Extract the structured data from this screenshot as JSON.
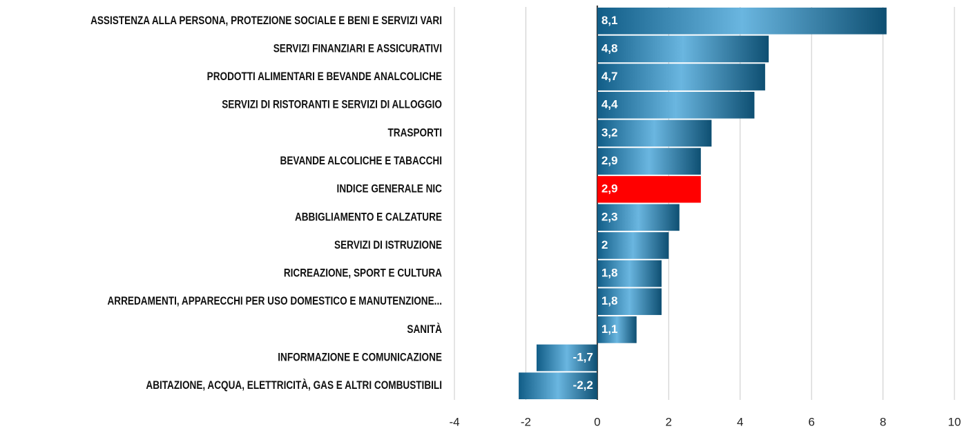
{
  "chart_data": {
    "type": "barh",
    "categories": [
      "ASSISTENZA ALLA PERSONA, PROTEZIONE SOCIALE E BENI E SERVIZI VARI",
      "SERVIZI FINANZIARI E ASSICURATIVI",
      "PRODOTTI ALIMENTARI E BEVANDE ANALCOLICHE",
      "SERVIZI DI RISTORANTI E SERVIZI DI ALLOGGIO",
      "TRASPORTI",
      "BEVANDE ALCOLICHE E TABACCHI",
      "INDICE GENERALE NIC",
      "ABBIGLIAMENTO E CALZATURE",
      "SERVIZI DI ISTRUZIONE",
      "RICREAZIONE, SPORT E CULTURA",
      "ARREDAMENTI, APPARECCHI PER USO DOMESTICO E MANUTENZIONE...",
      "SANITÀ",
      "INFORMAZIONE E COMUNICAZIONE",
      "ABITAZIONE, ACQUA, ELETTRICITÀ, GAS E ALTRI COMBUSTIBILI"
    ],
    "values": [
      8.1,
      4.8,
      4.7,
      4.4,
      3.2,
      2.9,
      2.9,
      2.3,
      2,
      1.8,
      1.8,
      1.1,
      -1.7,
      -2.2
    ],
    "value_labels": [
      "8,1",
      "4,8",
      "4,7",
      "4,4",
      "3,2",
      "2,9",
      "2,9",
      "2,3",
      "2",
      "1,8",
      "1,8",
      "1,1",
      "-1,7",
      "-2,2"
    ],
    "colors": [
      "#1a8fd0",
      "#1a8fd0",
      "#1a8fd0",
      "#1a8fd0",
      "#1a8fd0",
      "#1a8fd0",
      "#ff0000",
      "#1a8fd0",
      "#1a8fd0",
      "#1a8fd0",
      "#1a8fd0",
      "#1a8fd0",
      "#1a8fd0",
      "#1a8fd0"
    ],
    "xlim": [
      -4,
      10
    ],
    "xticks": [
      -4,
      -2,
      0,
      2,
      4,
      6,
      8,
      10
    ],
    "grid": true
  }
}
